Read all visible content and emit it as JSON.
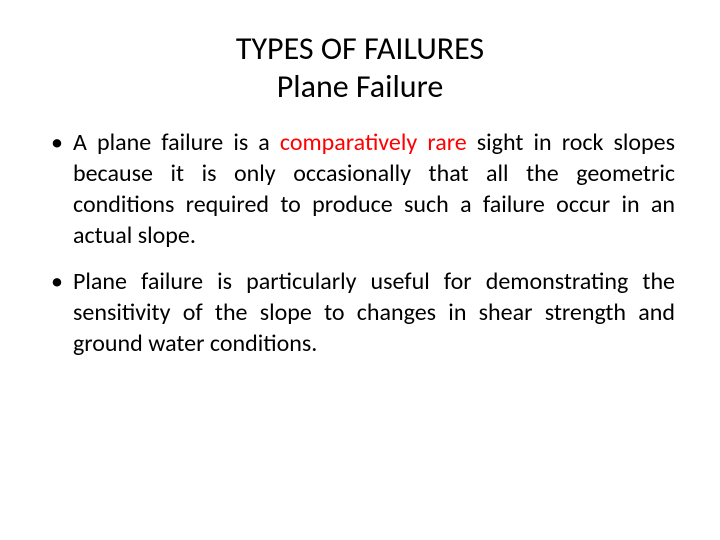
{
  "title": {
    "line1": "TYPES OF FAILURES",
    "line2": "Plane Failure"
  },
  "bullets": [
    {
      "pre": "A plane failure is a ",
      "highlight": "comparatively rare",
      "post": " sight in rock slopes because it is only occasionally that all the geometric conditions required to produce such a failure occur in an actual slope."
    },
    {
      "pre": "Plane failure is particularly useful for demonstrating the sensitivity of the slope to changes in shear strength and ground water conditions.",
      "highlight": "",
      "post": ""
    }
  ],
  "colors": {
    "background": "#ffffff",
    "text": "#000000",
    "highlight": "#ff0000"
  },
  "typography": {
    "title_fontsize": 32,
    "body_fontsize": 24,
    "font_family": "Calibri"
  }
}
